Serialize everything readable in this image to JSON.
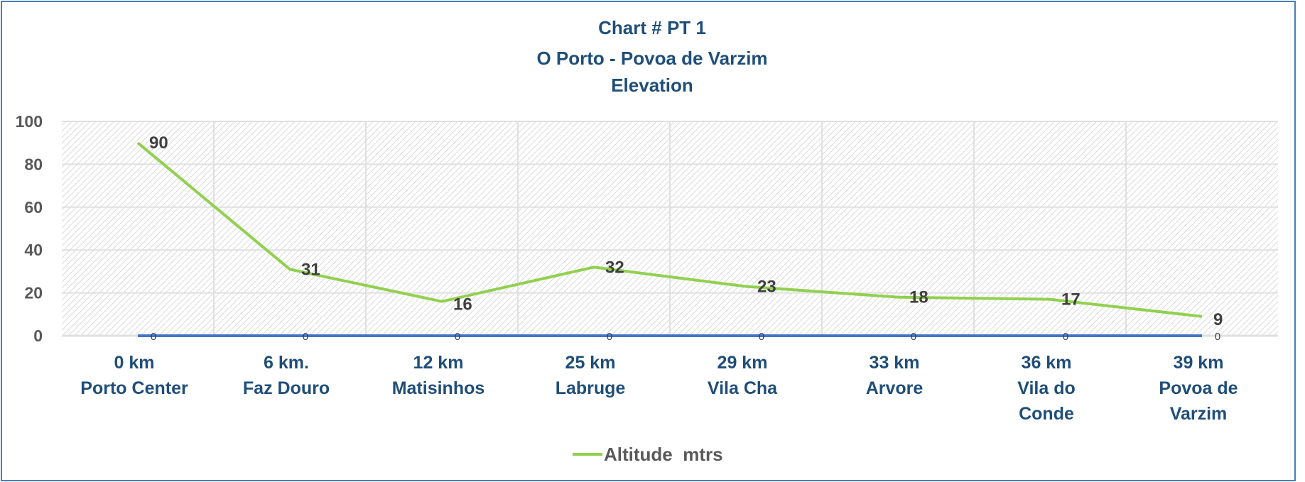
{
  "chart_data": {
    "type": "line",
    "title": [
      "Chart # PT 1",
      "O Porto  - Povoa de Varzim",
      "Elevation"
    ],
    "categories": [
      [
        "0 km",
        "Porto Center"
      ],
      [
        "6 km.",
        "Faz Douro"
      ],
      [
        "12 km",
        "Matisinhos"
      ],
      [
        "25 km",
        "Labruge"
      ],
      [
        "29 km",
        "Vila Cha"
      ],
      [
        "33 km",
        "Arvore"
      ],
      [
        "36 km",
        "Vila do",
        "Conde"
      ],
      [
        "39 km",
        "Povoa de",
        "Varzim"
      ]
    ],
    "series": [
      {
        "name": "Altitude  mtrs",
        "values": [
          90,
          31,
          16,
          32,
          23,
          18,
          17,
          9
        ],
        "color": "#92d050"
      },
      {
        "values": [
          0,
          0,
          0,
          0,
          0,
          0,
          0,
          0
        ],
        "color": "#4472c4"
      }
    ],
    "ylim": [
      0,
      100
    ],
    "yticks": [
      0,
      20,
      40,
      60,
      80,
      100
    ],
    "grid": true,
    "legend": "bottom",
    "plot_background": "diagonal hatch"
  }
}
